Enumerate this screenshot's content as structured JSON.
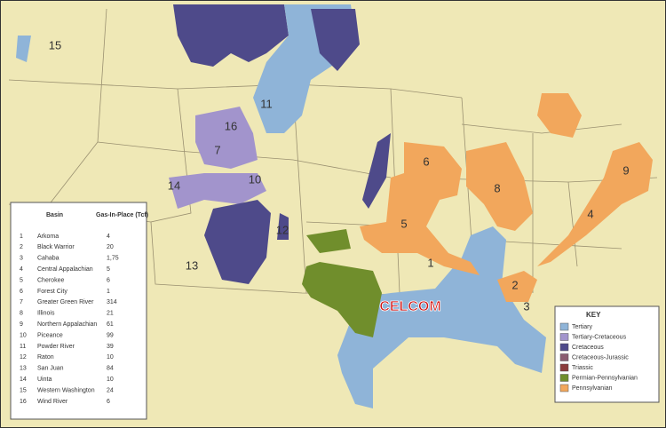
{
  "legend_table": {
    "header_basin": "Basin",
    "header_gas": "Gas-In-Place (Tcf)",
    "rows": [
      [
        "1",
        "Arkoma",
        "4"
      ],
      [
        "2",
        "Black Warrior",
        "20"
      ],
      [
        "3",
        "Cahaba",
        "1,75"
      ],
      [
        "4",
        "Central Appalachian",
        "5"
      ],
      [
        "5",
        "Cherokee",
        "6"
      ],
      [
        "6",
        "Forest City",
        "1"
      ],
      [
        "7",
        "Greater Green River",
        "314"
      ],
      [
        "8",
        "Illinois",
        "21"
      ],
      [
        "9",
        "Northern Appalachian",
        "61"
      ],
      [
        "10",
        "Piceance",
        "99"
      ],
      [
        "11",
        "Powder River",
        "39"
      ],
      [
        "12",
        "Raton",
        "10"
      ],
      [
        "13",
        "San Juan",
        "84"
      ],
      [
        "14",
        "Uinta",
        "10"
      ],
      [
        "15",
        "Western Washington",
        "24"
      ],
      [
        "16",
        "Wind River",
        "6"
      ]
    ]
  },
  "key": {
    "title": "KEY",
    "items": [
      {
        "label": "Tertiary",
        "color": "#8fb4d8"
      },
      {
        "label": "Tertiary-Cretaceous",
        "color": "#a294cc"
      },
      {
        "label": "Cretaceous",
        "color": "#4e4a8a"
      },
      {
        "label": "Cretaceous-Jurassic",
        "color": "#8a5c70"
      },
      {
        "label": "Triassic",
        "color": "#8b3b3b"
      },
      {
        "label": "Permian-Pennsylvanian",
        "color": "#708e2c"
      },
      {
        "label": "Pennsylvanian",
        "color": "#f2a75c"
      }
    ]
  },
  "map_labels": [
    "15",
    "11",
    "16",
    "7",
    "14",
    "10",
    "13",
    "12",
    "6",
    "8",
    "9",
    "5",
    "4",
    "1",
    "2",
    "3"
  ],
  "watermark": "CELCOM"
}
